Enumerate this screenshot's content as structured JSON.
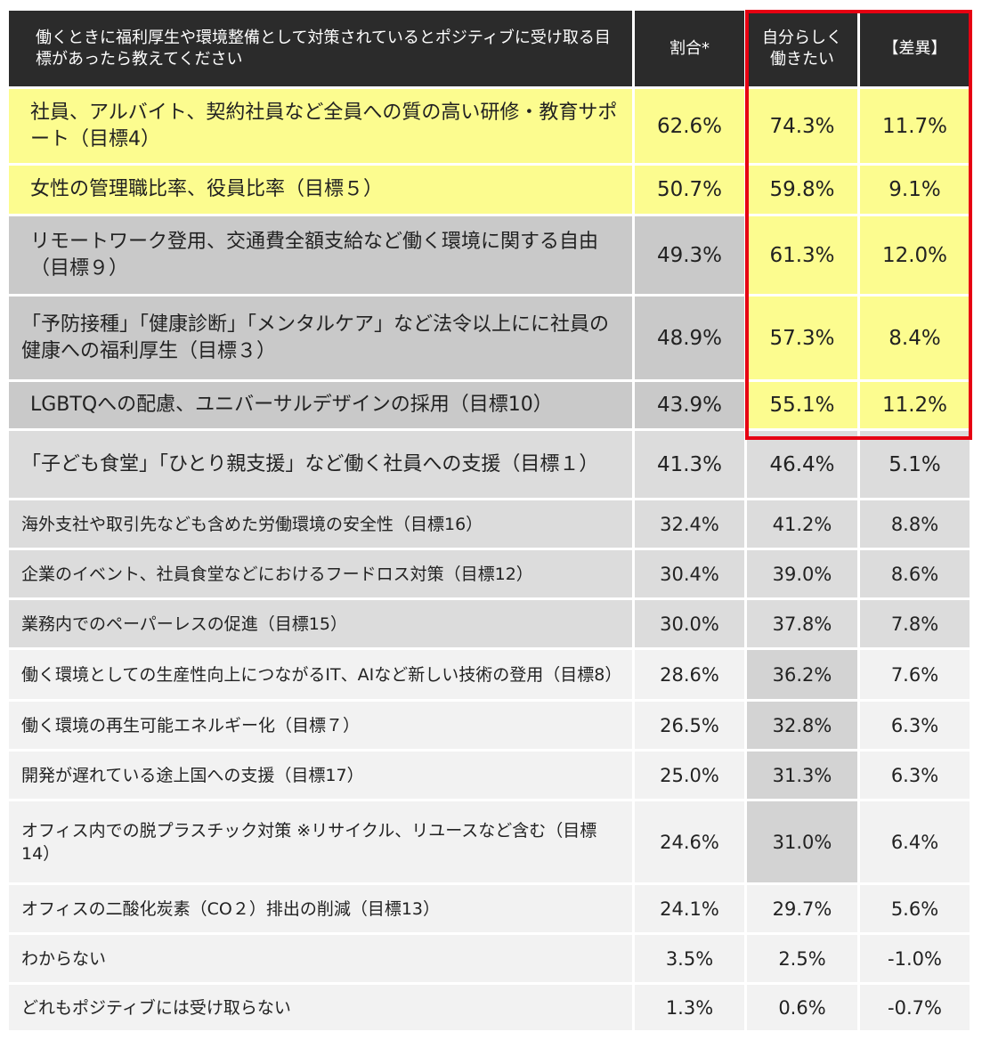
{
  "chart_data": {
    "type": "table",
    "columns": [
      "働くときに福利厚生や環境整備として対策されているとポジティブに受け取る目標があったら教えてください",
      "割合*",
      "自分らしく働きたい",
      "【差異】"
    ],
    "rows": [
      {
        "label": "社員、アルバイト、契約社員など全員への質の高い研修・教育サポート（目標4）",
        "share": "62.6%",
        "self": "74.3%",
        "diff": "11.7%"
      },
      {
        "label": "女性の管理職比率、役員比率（目標５）",
        "share": "50.7%",
        "self": "59.8%",
        "diff": "9.1%"
      },
      {
        "label": "リモートワーク登用、交通費全額支給など働く環境に関する自由（目標９）",
        "share": "49.3%",
        "self": "61.3%",
        "diff": "12.0%"
      },
      {
        "label": "「予防接種」「健康診断」「メンタルケア」など法令以上にに社員の健康への福利厚生（目標３）",
        "share": "48.9%",
        "self": "57.3%",
        "diff": "8.4%"
      },
      {
        "label": "LGBTQへの配慮、ユニバーサルデザインの採用（目標10）",
        "share": "43.9%",
        "self": "55.1%",
        "diff": "11.2%"
      },
      {
        "label": "「子ども食堂」「ひとり親支援」など働く社員への支援（目標１）",
        "share": "41.3%",
        "self": "46.4%",
        "diff": "5.1%"
      },
      {
        "label": "海外支社や取引先なども含めた労働環境の安全性（目標16）",
        "share": "32.4%",
        "self": "41.2%",
        "diff": "8.8%"
      },
      {
        "label": "企業のイベント、社員食堂などにおけるフードロス対策（目標12）",
        "share": "30.4%",
        "self": "39.0%",
        "diff": "8.6%"
      },
      {
        "label": "業務内でのペーパーレスの促進（目標15）",
        "share": "30.0%",
        "self": "37.8%",
        "diff": "7.8%"
      },
      {
        "label": "働く環境としての生産性向上につながるIT、AIなど新しい技術の登用（目標8）",
        "share": "28.6%",
        "self": "36.2%",
        "diff": "7.6%"
      },
      {
        "label": "働く環境の再生可能エネルギー化（目標７）",
        "share": "26.5%",
        "self": "32.8%",
        "diff": "6.3%"
      },
      {
        "label": "開発が遅れている途上国への支援（目標17）",
        "share": "25.0%",
        "self": "31.3%",
        "diff": "6.3%"
      },
      {
        "label": "オフィス内での脱プラスチック対策 ※リサイクル、リユースなど含む（目標14）",
        "share": "24.6%",
        "self": "31.0%",
        "diff": "6.4%"
      },
      {
        "label": "オフィスの二酸化炭素（CO２）排出の削減（目標13）",
        "share": "24.1%",
        "self": "29.7%",
        "diff": "5.6%"
      },
      {
        "label": "わからない",
        "share": "3.5%",
        "self": "2.5%",
        "diff": "-1.0%"
      },
      {
        "label": "どれもポジティブには受け取らない",
        "share": "1.3%",
        "self": "0.6%",
        "diff": "-0.7%"
      }
    ]
  },
  "colors": {
    "header_bg": "#2b2b2b",
    "highlight_yellow": "#fcfc8f",
    "highlight_border": "#e60012",
    "gray_dark": "#c9c9c9",
    "gray_mid": "#dcdcdc",
    "gray_light": "#f2f2f2"
  }
}
